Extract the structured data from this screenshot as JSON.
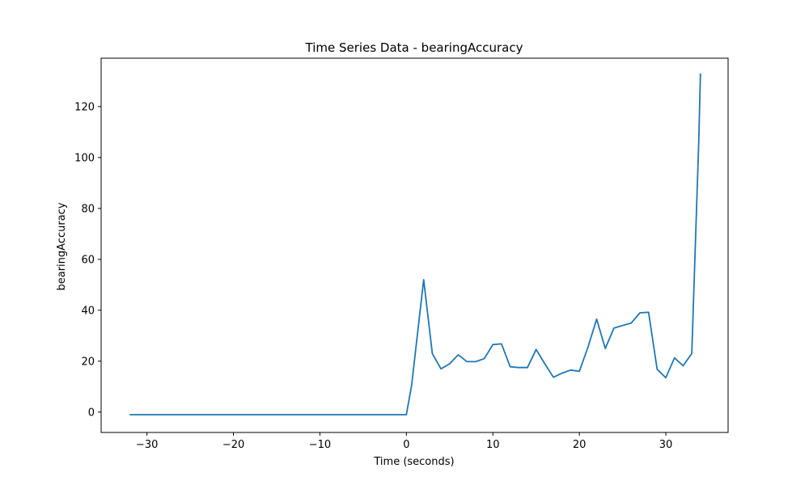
{
  "chart_data": {
    "type": "line",
    "title": "Time Series Data - bearingAccuracy",
    "xlabel": "Time (seconds)",
    "ylabel": "bearingAccuracy",
    "xlim": [
      -35.3,
      37.2
    ],
    "ylim": [
      -8,
      139
    ],
    "xticks": [
      -30,
      -20,
      -10,
      0,
      10,
      20,
      30
    ],
    "yticks": [
      0,
      20,
      40,
      60,
      80,
      100,
      120
    ],
    "grid": false,
    "line_color": "#1f77b4",
    "series": [
      {
        "x": [
          -32,
          0,
          0.6,
          2,
          3,
          4,
          5,
          6,
          7,
          8,
          9,
          10,
          11,
          12,
          13,
          14,
          15,
          16,
          17,
          18,
          19,
          20,
          21,
          22,
          23,
          24,
          25,
          26,
          27,
          28,
          29,
          30,
          31,
          32,
          33,
          33.8,
          34
        ],
        "values": [
          -1,
          -1,
          10.5,
          52,
          23,
          17,
          19,
          22.5,
          19.8,
          19.8,
          21,
          26.5,
          26.8,
          17.8,
          17.5,
          17.5,
          24.6,
          19,
          13.7,
          15.3,
          16.5,
          16,
          25.5,
          36.5,
          25,
          33,
          34,
          35,
          39,
          39.2,
          16.8,
          13.5,
          21.3,
          18.2,
          23,
          106,
          133
        ]
      }
    ]
  }
}
